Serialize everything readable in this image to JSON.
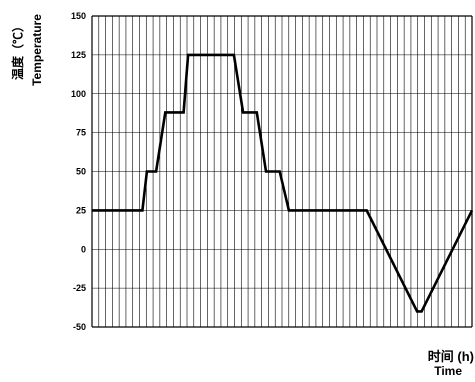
{
  "chart_data": {
    "type": "line",
    "ylabel_cn": "温度（℃）",
    "ylabel_en": "Temperature",
    "xlabel_cn": "时间 (h)",
    "xlabel_en": "Time",
    "ylim": [
      -50,
      150
    ],
    "yticks": [
      "150",
      "125",
      "100",
      "75",
      "50",
      "25",
      "0",
      "-25",
      "-50"
    ],
    "ytick_values": [
      150,
      125,
      100,
      75,
      50,
      25,
      0,
      -25,
      -50
    ],
    "grid": true,
    "line_color": "#000000",
    "series": [
      {
        "x": [
          0,
          11,
          12,
          14,
          16,
          20,
          21,
          31,
          33,
          36,
          38,
          41,
          43,
          57,
          60,
          71,
          72,
          83
        ],
        "y": [
          25,
          25,
          50,
          50,
          88,
          88,
          125,
          125,
          88,
          88,
          50,
          50,
          25,
          25,
          25,
          -40,
          -40,
          25
        ]
      }
    ]
  }
}
